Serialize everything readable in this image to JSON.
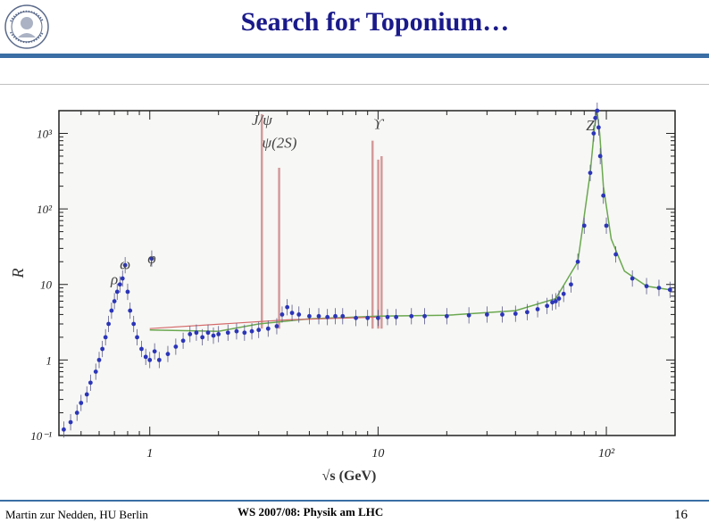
{
  "slide": {
    "title": "Search for Toponium…",
    "footer_left": "Martin zur Nedden, HU Berlin",
    "footer_center": "WS 2007/08: Physik am LHC",
    "page_number": "16"
  },
  "chart_data": {
    "type": "scatter",
    "xscale": "log",
    "yscale": "log",
    "xlabel": "√s (GeV)",
    "ylabel": "R",
    "xlim": [
      0.4,
      200
    ],
    "ylim": [
      0.1,
      2000
    ],
    "x_tick_labels": [
      {
        "value": 1,
        "label": "1"
      },
      {
        "value": 10,
        "label": "10"
      },
      {
        "value": 100,
        "label": "10²"
      }
    ],
    "y_tick_labels": [
      {
        "value": 0.1,
        "label": "10⁻¹"
      },
      {
        "value": 1,
        "label": "1"
      },
      {
        "value": 10,
        "label": "10"
      },
      {
        "value": 100,
        "label": "10²"
      },
      {
        "value": 1000,
        "label": "10³"
      }
    ],
    "resonance_labels": [
      {
        "label": "ρ",
        "x": 0.7,
        "y": 10
      },
      {
        "label": "ω",
        "x": 0.78,
        "y": 16
      },
      {
        "label": "φ",
        "x": 1.02,
        "y": 19
      },
      {
        "label": "J/ψ",
        "x": 3.1,
        "y": 1300
      },
      {
        "label": "ψ(2S)",
        "x": 3.7,
        "y": 650
      },
      {
        "label": "ϒ",
        "x": 10.0,
        "y": 1150
      },
      {
        "label": "Z",
        "x": 85,
        "y": 1100
      }
    ],
    "narrow_resonance_lines": [
      {
        "x": 3.097,
        "y": 1800
      },
      {
        "x": 3.686,
        "y": 350
      },
      {
        "x": 9.46,
        "y": 800
      },
      {
        "x": 10.02,
        "y": 450
      },
      {
        "x": 10.36,
        "y": 500
      }
    ],
    "series": [
      {
        "kind": "data",
        "points": [
          [
            0.42,
            0.12
          ],
          [
            0.45,
            0.15
          ],
          [
            0.48,
            0.2
          ],
          [
            0.5,
            0.27
          ],
          [
            0.53,
            0.35
          ],
          [
            0.55,
            0.5
          ],
          [
            0.58,
            0.7
          ],
          [
            0.6,
            1.0
          ],
          [
            0.62,
            1.4
          ],
          [
            0.64,
            2.0
          ],
          [
            0.66,
            3.0
          ],
          [
            0.68,
            4.5
          ],
          [
            0.7,
            6.0
          ],
          [
            0.72,
            8.0
          ],
          [
            0.74,
            10.0
          ],
          [
            0.76,
            12.0
          ],
          [
            0.78,
            18.0
          ],
          [
            0.8,
            8.0
          ],
          [
            0.82,
            4.5
          ],
          [
            0.85,
            3.0
          ],
          [
            0.88,
            2.0
          ],
          [
            0.92,
            1.4
          ],
          [
            0.96,
            1.1
          ],
          [
            1.0,
            1.0
          ],
          [
            1.02,
            22.0
          ],
          [
            1.05,
            1.3
          ],
          [
            1.1,
            1.0
          ],
          [
            1.2,
            1.2
          ],
          [
            1.3,
            1.5
          ],
          [
            1.4,
            1.8
          ],
          [
            1.5,
            2.2
          ],
          [
            1.6,
            2.3
          ],
          [
            1.7,
            2.0
          ],
          [
            1.8,
            2.3
          ],
          [
            1.9,
            2.1
          ],
          [
            2.0,
            2.2
          ],
          [
            2.2,
            2.3
          ],
          [
            2.4,
            2.4
          ],
          [
            2.6,
            2.3
          ],
          [
            2.8,
            2.4
          ],
          [
            3.0,
            2.5
          ],
          [
            3.3,
            2.6
          ],
          [
            3.6,
            2.8
          ],
          [
            3.8,
            4.0
          ],
          [
            4.0,
            5.0
          ],
          [
            4.2,
            4.2
          ],
          [
            4.5,
            4.0
          ],
          [
            5.0,
            3.8
          ],
          [
            5.5,
            3.8
          ],
          [
            6.0,
            3.7
          ],
          [
            6.5,
            3.8
          ],
          [
            7.0,
            3.8
          ],
          [
            8.0,
            3.6
          ],
          [
            9.0,
            3.6
          ],
          [
            10.0,
            3.6
          ],
          [
            11.0,
            3.7
          ],
          [
            12.0,
            3.7
          ],
          [
            14.0,
            3.8
          ],
          [
            16.0,
            3.8
          ],
          [
            20.0,
            3.8
          ],
          [
            25.0,
            3.9
          ],
          [
            30.0,
            4.0
          ],
          [
            35.0,
            4.0
          ],
          [
            40.0,
            4.1
          ],
          [
            45.0,
            4.3
          ],
          [
            50.0,
            4.7
          ],
          [
            55.0,
            5.2
          ],
          [
            58.0,
            5.8
          ],
          [
            60.0,
            6.0
          ],
          [
            62.0,
            6.5
          ],
          [
            65.0,
            7.5
          ],
          [
            70.0,
            10.0
          ],
          [
            75.0,
            20.0
          ],
          [
            80.0,
            60.0
          ],
          [
            85.0,
            300.0
          ],
          [
            88.0,
            1000.0
          ],
          [
            89.5,
            1600.0
          ],
          [
            91.2,
            2000.0
          ],
          [
            92.5,
            1200.0
          ],
          [
            94.0,
            500.0
          ],
          [
            97.0,
            150.0
          ],
          [
            100.0,
            60.0
          ],
          [
            110.0,
            25.0
          ],
          [
            130.0,
            12.0
          ],
          [
            150.0,
            9.5
          ],
          [
            170.0,
            9.0
          ],
          [
            190.0,
            8.5
          ]
        ]
      },
      {
        "kind": "model",
        "points": [
          [
            1.0,
            2.5
          ],
          [
            2.0,
            2.4
          ],
          [
            3.0,
            3.0
          ],
          [
            5.0,
            3.5
          ],
          [
            10.0,
            3.8
          ],
          [
            20.0,
            3.9
          ],
          [
            40.0,
            4.5
          ],
          [
            60.0,
            6.5
          ],
          [
            75.0,
            20.0
          ],
          [
            85.0,
            300.0
          ],
          [
            89.0,
            1300.0
          ],
          [
            91.2,
            1900.0
          ],
          [
            93.5,
            1000.0
          ],
          [
            97.0,
            200.0
          ],
          [
            105.0,
            40.0
          ],
          [
            120.0,
            15.0
          ],
          [
            150.0,
            9.5
          ],
          [
            190.0,
            8.5
          ]
        ]
      }
    ]
  }
}
